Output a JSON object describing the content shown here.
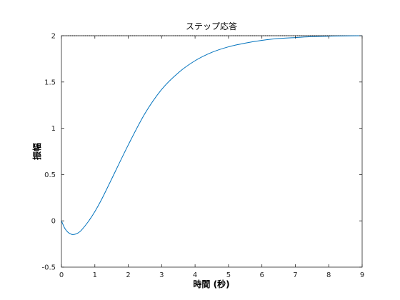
{
  "chart_data": {
    "type": "line",
    "title": "ステップ応答",
    "xlabel": "時間 (秒)",
    "ylabel": "振幅",
    "xlim": [
      0,
      9
    ],
    "ylim": [
      -0.5,
      2
    ],
    "x_ticks": [
      0,
      1,
      2,
      3,
      4,
      5,
      6,
      7,
      8,
      9
    ],
    "y_ticks": [
      -0.5,
      0,
      0.5,
      1,
      1.5,
      2
    ],
    "y_tick_labels": [
      "-0.5",
      "0",
      "0.5",
      "1",
      "1.5",
      "2"
    ],
    "grid": false,
    "reference_line": {
      "y": 2,
      "style": "dotted",
      "color": "#000000"
    },
    "series": [
      {
        "color": "#0072bd",
        "x": [
          0,
          0.1,
          0.2,
          0.3,
          0.35,
          0.4,
          0.5,
          0.6,
          0.8,
          1.0,
          1.2,
          1.5,
          2.0,
          2.5,
          3.0,
          3.5,
          4.0,
          4.5,
          5.0,
          5.5,
          6.0,
          6.5,
          7.0,
          7.5,
          8.0,
          8.5,
          9.0
        ],
        "y": [
          0,
          -0.08,
          -0.125,
          -0.145,
          -0.148,
          -0.145,
          -0.13,
          -0.1,
          -0.01,
          0.1,
          0.23,
          0.45,
          0.82,
          1.16,
          1.42,
          1.6,
          1.73,
          1.82,
          1.88,
          1.92,
          1.95,
          1.97,
          1.98,
          1.99,
          1.995,
          1.998,
          2.0
        ]
      }
    ]
  }
}
